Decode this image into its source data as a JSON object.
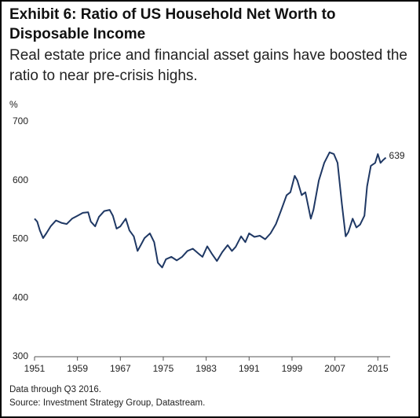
{
  "chart_data": {
    "type": "line",
    "title": "Exhibit 6: Ratio of US Household Net Worth to Disposable Income",
    "subtitle": "Real estate price and financial asset gains have boosted the ratio to near pre-crisis highs.",
    "y_label": "%",
    "x": [
      1951,
      1951.5,
      1952,
      1952.6,
      1953.2,
      1954,
      1955,
      1956,
      1957,
      1958,
      1959,
      1960,
      1961,
      1961.5,
      1962.3,
      1963,
      1964,
      1965,
      1965.6,
      1966.3,
      1967,
      1968,
      1968.7,
      1969.5,
      1970.2,
      1970.8,
      1971.5,
      1972.5,
      1973.3,
      1974,
      1974.8,
      1975.5,
      1976.5,
      1977.5,
      1978.5,
      1979.5,
      1980.5,
      1981.5,
      1982.3,
      1983.2,
      1984,
      1985,
      1986,
      1987,
      1987.8,
      1988.5,
      1989.5,
      1990.3,
      1991,
      1992,
      1993,
      1994,
      1995,
      1996,
      1997,
      1998,
      1998.7,
      1999.5,
      2000,
      2000.8,
      2001.5,
      2002.5,
      2003,
      2004,
      2005,
      2006,
      2006.8,
      2007.5,
      2008.3,
      2009,
      2009.5,
      2010.3,
      2011,
      2011.7,
      2012.5,
      2013,
      2013.7,
      2014.5,
      2015,
      2015.5,
      2016,
      2016.5
    ],
    "series": [
      {
        "name": "Ratio",
        "color": "#1f3864",
        "values": [
          535,
          530,
          515,
          502,
          510,
          522,
          532,
          528,
          526,
          535,
          540,
          545,
          546,
          530,
          522,
          538,
          548,
          550,
          540,
          518,
          522,
          535,
          515,
          505,
          480,
          490,
          502,
          510,
          495,
          460,
          452,
          466,
          470,
          464,
          470,
          480,
          484,
          476,
          470,
          488,
          476,
          463,
          478,
          490,
          480,
          487,
          505,
          495,
          510,
          504,
          506,
          500,
          510,
          526,
          550,
          575,
          580,
          608,
          600,
          575,
          580,
          535,
          550,
          600,
          630,
          648,
          645,
          630,
          560,
          505,
          512,
          535,
          520,
          525,
          540,
          590,
          625,
          630,
          645,
          630,
          635,
          639
        ]
      }
    ],
    "xlim": [
      1951,
      2017.3
    ],
    "xticks": [
      1951,
      1959,
      1967,
      1975,
      1983,
      1991,
      1999,
      2007,
      2015
    ],
    "ylim": [
      300,
      700
    ],
    "yticks": [
      300,
      400,
      500,
      600,
      700
    ],
    "grid": false,
    "annotations": [
      {
        "text": "639",
        "x": 2016.5,
        "y": 639
      }
    ],
    "notes": [
      "Data through Q3 2016.",
      "Source: Investment Strategy Group, Datastream."
    ]
  }
}
